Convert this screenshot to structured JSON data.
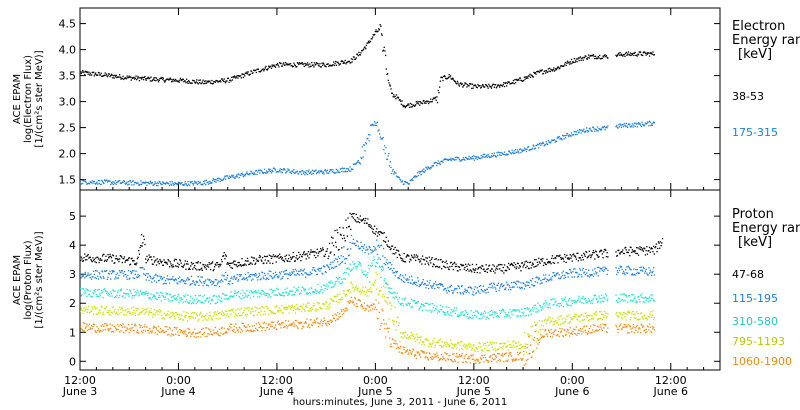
{
  "x_axis": {
    "label": "hours:minutes, June  3, 2011 - June  6, 2011",
    "ticks": [
      {
        "hour": 0,
        "time": "12:00",
        "date": "June 3"
      },
      {
        "hour": 12,
        "time": "0:00",
        "date": "June 4"
      },
      {
        "hour": 24,
        "time": "12:00",
        "date": "June 4"
      },
      {
        "hour": 36,
        "time": "0:00",
        "date": "June 5"
      },
      {
        "hour": 48,
        "time": "12:00",
        "date": "June 5"
      },
      {
        "hour": 60,
        "time": "0:00",
        "date": "June 6"
      },
      {
        "hour": 72,
        "time": "12:00",
        "date": "June 6"
      }
    ]
  },
  "chart_data": [
    {
      "type": "scatter",
      "instrument": "ACE EPAM",
      "ylabel": "log(Electron Flux)",
      "yunits": "[1/(cm²s ster MeV)]",
      "ylim": [
        1.3,
        4.8
      ],
      "yticks": [
        "1.5",
        "2.0",
        "2.5",
        "3.0",
        "3.5",
        "4.0",
        "4.5"
      ],
      "xlim": [
        0,
        78
      ],
      "legend": {
        "title_line1": "Electron",
        "title_line2": "Energy ran",
        "units": "[keV]"
      },
      "series": [
        {
          "name": "38-53",
          "color": "#000000",
          "points": [
            [
              0,
              3.57
            ],
            [
              3,
              3.52
            ],
            [
              6,
              3.47
            ],
            [
              9,
              3.44
            ],
            [
              12,
              3.42
            ],
            [
              15,
              3.38
            ],
            [
              18,
              3.42
            ],
            [
              21,
              3.58
            ],
            [
              24,
              3.72
            ],
            [
              27,
              3.72
            ],
            [
              30,
              3.72
            ],
            [
              33,
              3.8
            ],
            [
              34,
              3.93
            ],
            [
              35,
              4.12
            ],
            [
              36,
              4.35
            ],
            [
              36.5,
              4.4
            ],
            [
              37,
              4.0
            ],
            [
              37.5,
              3.4
            ],
            [
              38,
              3.15
            ],
            [
              38.5,
              3.1
            ],
            [
              39.5,
              2.93
            ],
            [
              41,
              2.97
            ],
            [
              42.5,
              3.02
            ],
            [
              43.5,
              3.08
            ],
            [
              44,
              3.45
            ],
            [
              45,
              3.5
            ],
            [
              46,
              3.35
            ],
            [
              48,
              3.3
            ],
            [
              50,
              3.3
            ],
            [
              52,
              3.35
            ],
            [
              54,
              3.45
            ],
            [
              56,
              3.58
            ],
            [
              58,
              3.65
            ],
            [
              60,
              3.8
            ],
            [
              62,
              3.88
            ],
            [
              64,
              3.88
            ],
            [
              66,
              3.92
            ],
            [
              68,
              3.93
            ],
            [
              70,
              3.93
            ]
          ]
        },
        {
          "name": "175-315",
          "color": "#1e80d8",
          "points": [
            [
              0,
              1.47
            ],
            [
              3,
              1.46
            ],
            [
              6,
              1.45
            ],
            [
              9,
              1.44
            ],
            [
              12,
              1.43
            ],
            [
              15,
              1.45
            ],
            [
              18,
              1.55
            ],
            [
              21,
              1.64
            ],
            [
              24,
              1.7
            ],
            [
              27,
              1.65
            ],
            [
              30,
              1.66
            ],
            [
              33,
              1.72
            ],
            [
              34,
              1.9
            ],
            [
              35,
              2.25
            ],
            [
              35.5,
              2.55
            ],
            [
              36,
              2.6
            ],
            [
              36.7,
              2.3
            ],
            [
              37.3,
              2.0
            ],
            [
              38,
              1.7
            ],
            [
              39,
              1.48
            ],
            [
              40,
              1.43
            ],
            [
              41,
              1.6
            ],
            [
              42,
              1.7
            ],
            [
              43,
              1.8
            ],
            [
              45,
              1.9
            ],
            [
              48,
              1.93
            ],
            [
              51,
              2.0
            ],
            [
              54,
              2.08
            ],
            [
              57,
              2.22
            ],
            [
              60,
              2.4
            ],
            [
              62,
              2.48
            ],
            [
              64,
              2.5
            ],
            [
              66,
              2.55
            ],
            [
              68,
              2.57
            ],
            [
              70,
              2.6
            ]
          ]
        }
      ]
    },
    {
      "type": "scatter",
      "instrument": "ACE EPAM",
      "ylabel": "log(Proton Flux)",
      "yunits": "[1/(cm²s ster MeV)]",
      "ylim": [
        -0.3,
        5.9
      ],
      "yticks": [
        "0",
        "1",
        "2",
        "3",
        "4",
        "5"
      ],
      "xlim": [
        0,
        78
      ],
      "legend": {
        "title_line1": "Proton",
        "title_line2": "Energy ran",
        "units": "[keV]"
      },
      "series": [
        {
          "name": "47-68",
          "color": "#000000",
          "points": [
            [
              0,
              3.6
            ],
            [
              4,
              3.55
            ],
            [
              7,
              3.45
            ],
            [
              7.5,
              4.3
            ],
            [
              8,
              3.55
            ],
            [
              11,
              3.4
            ],
            [
              14,
              3.3
            ],
            [
              17,
              3.3
            ],
            [
              17.5,
              3.7
            ],
            [
              18,
              3.35
            ],
            [
              21,
              3.5
            ],
            [
              24,
              3.55
            ],
            [
              27,
              3.65
            ],
            [
              30,
              3.8
            ],
            [
              32,
              4.3
            ],
            [
              33,
              5.0
            ],
            [
              34,
              4.9
            ],
            [
              35,
              4.8
            ],
            [
              36,
              4.5
            ],
            [
              37,
              4.3
            ],
            [
              38,
              3.9
            ],
            [
              39,
              3.6
            ],
            [
              42,
              3.5
            ],
            [
              45,
              3.3
            ],
            [
              48,
              3.2
            ],
            [
              51,
              3.2
            ],
            [
              54,
              3.3
            ],
            [
              57,
              3.5
            ],
            [
              60,
              3.6
            ],
            [
              63,
              3.7
            ],
            [
              66,
              3.8
            ],
            [
              70,
              3.85
            ],
            [
              71,
              4.2
            ]
          ]
        },
        {
          "name": "115-195",
          "color": "#1e80d8",
          "points": [
            [
              0,
              3.0
            ],
            [
              4,
              3.0
            ],
            [
              7,
              3.0
            ],
            [
              7.5,
              3.2
            ],
            [
              8,
              2.9
            ],
            [
              11,
              2.8
            ],
            [
              14,
              2.8
            ],
            [
              17,
              2.75
            ],
            [
              17.5,
              3.0
            ],
            [
              18,
              2.8
            ],
            [
              21,
              2.95
            ],
            [
              24,
              3.0
            ],
            [
              27,
              3.05
            ],
            [
              30,
              3.2
            ],
            [
              32,
              3.6
            ],
            [
              33,
              4.2
            ],
            [
              34,
              4.0
            ],
            [
              35,
              3.8
            ],
            [
              36,
              4.0
            ],
            [
              37,
              3.5
            ],
            [
              38,
              3.2
            ],
            [
              39,
              2.9
            ],
            [
              42,
              2.7
            ],
            [
              45,
              2.5
            ],
            [
              48,
              2.45
            ],
            [
              51,
              2.6
            ],
            [
              54,
              2.65
            ],
            [
              57,
              2.9
            ],
            [
              60,
              3.05
            ],
            [
              63,
              3.1
            ],
            [
              66,
              3.15
            ],
            [
              70,
              3.1
            ]
          ]
        },
        {
          "name": "310-580",
          "color": "#20e0d0",
          "points": [
            [
              0,
              2.4
            ],
            [
              4,
              2.35
            ],
            [
              7,
              2.35
            ],
            [
              11,
              2.2
            ],
            [
              14,
              2.15
            ],
            [
              17,
              2.15
            ],
            [
              18,
              2.3
            ],
            [
              21,
              2.35
            ],
            [
              24,
              2.4
            ],
            [
              27,
              2.45
            ],
            [
              30,
              2.55
            ],
            [
              32,
              2.9
            ],
            [
              33,
              3.3
            ],
            [
              34,
              3.3
            ],
            [
              35,
              3.0
            ],
            [
              36,
              3.5
            ],
            [
              37,
              2.8
            ],
            [
              38,
              2.4
            ],
            [
              39,
              2.1
            ],
            [
              42,
              1.9
            ],
            [
              45,
              1.75
            ],
            [
              48,
              1.6
            ],
            [
              51,
              1.65
            ],
            [
              54,
              1.7
            ],
            [
              57,
              2.0
            ],
            [
              60,
              2.1
            ],
            [
              63,
              2.2
            ],
            [
              66,
              2.2
            ],
            [
              70,
              2.2
            ]
          ]
        },
        {
          "name": "795-1193",
          "color": "#c8e000",
          "points": [
            [
              0,
              1.8
            ],
            [
              4,
              1.75
            ],
            [
              7,
              1.75
            ],
            [
              11,
              1.6
            ],
            [
              14,
              1.55
            ],
            [
              17,
              1.6
            ],
            [
              18,
              1.7
            ],
            [
              21,
              1.75
            ],
            [
              24,
              1.8
            ],
            [
              27,
              1.85
            ],
            [
              30,
              1.95
            ],
            [
              32,
              2.3
            ],
            [
              33,
              2.6
            ],
            [
              34,
              2.5
            ],
            [
              35,
              2.4
            ],
            [
              36,
              2.75
            ],
            [
              37,
              2.2
            ],
            [
              38,
              1.5
            ],
            [
              39,
              1.0
            ],
            [
              42,
              0.7
            ],
            [
              45,
              0.6
            ],
            [
              48,
              0.5
            ],
            [
              51,
              0.55
            ],
            [
              54,
              0.6
            ],
            [
              56,
              1.2
            ],
            [
              57,
              1.4
            ],
            [
              60,
              1.5
            ],
            [
              63,
              1.6
            ],
            [
              66,
              1.6
            ],
            [
              70,
              1.6
            ]
          ]
        },
        {
          "name": "1060-1900",
          "color": "#f08a10",
          "points": [
            [
              0,
              1.2
            ],
            [
              4,
              1.15
            ],
            [
              7,
              1.15
            ],
            [
              11,
              1.05
            ],
            [
              14,
              1.0
            ],
            [
              17,
              1.05
            ],
            [
              18,
              1.15
            ],
            [
              21,
              1.2
            ],
            [
              24,
              1.25
            ],
            [
              27,
              1.3
            ],
            [
              30,
              1.4
            ],
            [
              32,
              1.7
            ],
            [
              33,
              2.1
            ],
            [
              34,
              2.0
            ],
            [
              35,
              1.8
            ],
            [
              36,
              1.9
            ],
            [
              37,
              1.3
            ],
            [
              38,
              0.7
            ],
            [
              39,
              0.4
            ],
            [
              42,
              0.2
            ],
            [
              45,
              0.15
            ],
            [
              48,
              0.1
            ],
            [
              51,
              0.15
            ],
            [
              54,
              0.2
            ],
            [
              56,
              0.9
            ],
            [
              57,
              1.0
            ],
            [
              60,
              1.05
            ],
            [
              63,
              1.15
            ],
            [
              66,
              1.15
            ],
            [
              70,
              1.15
            ]
          ]
        }
      ]
    }
  ]
}
